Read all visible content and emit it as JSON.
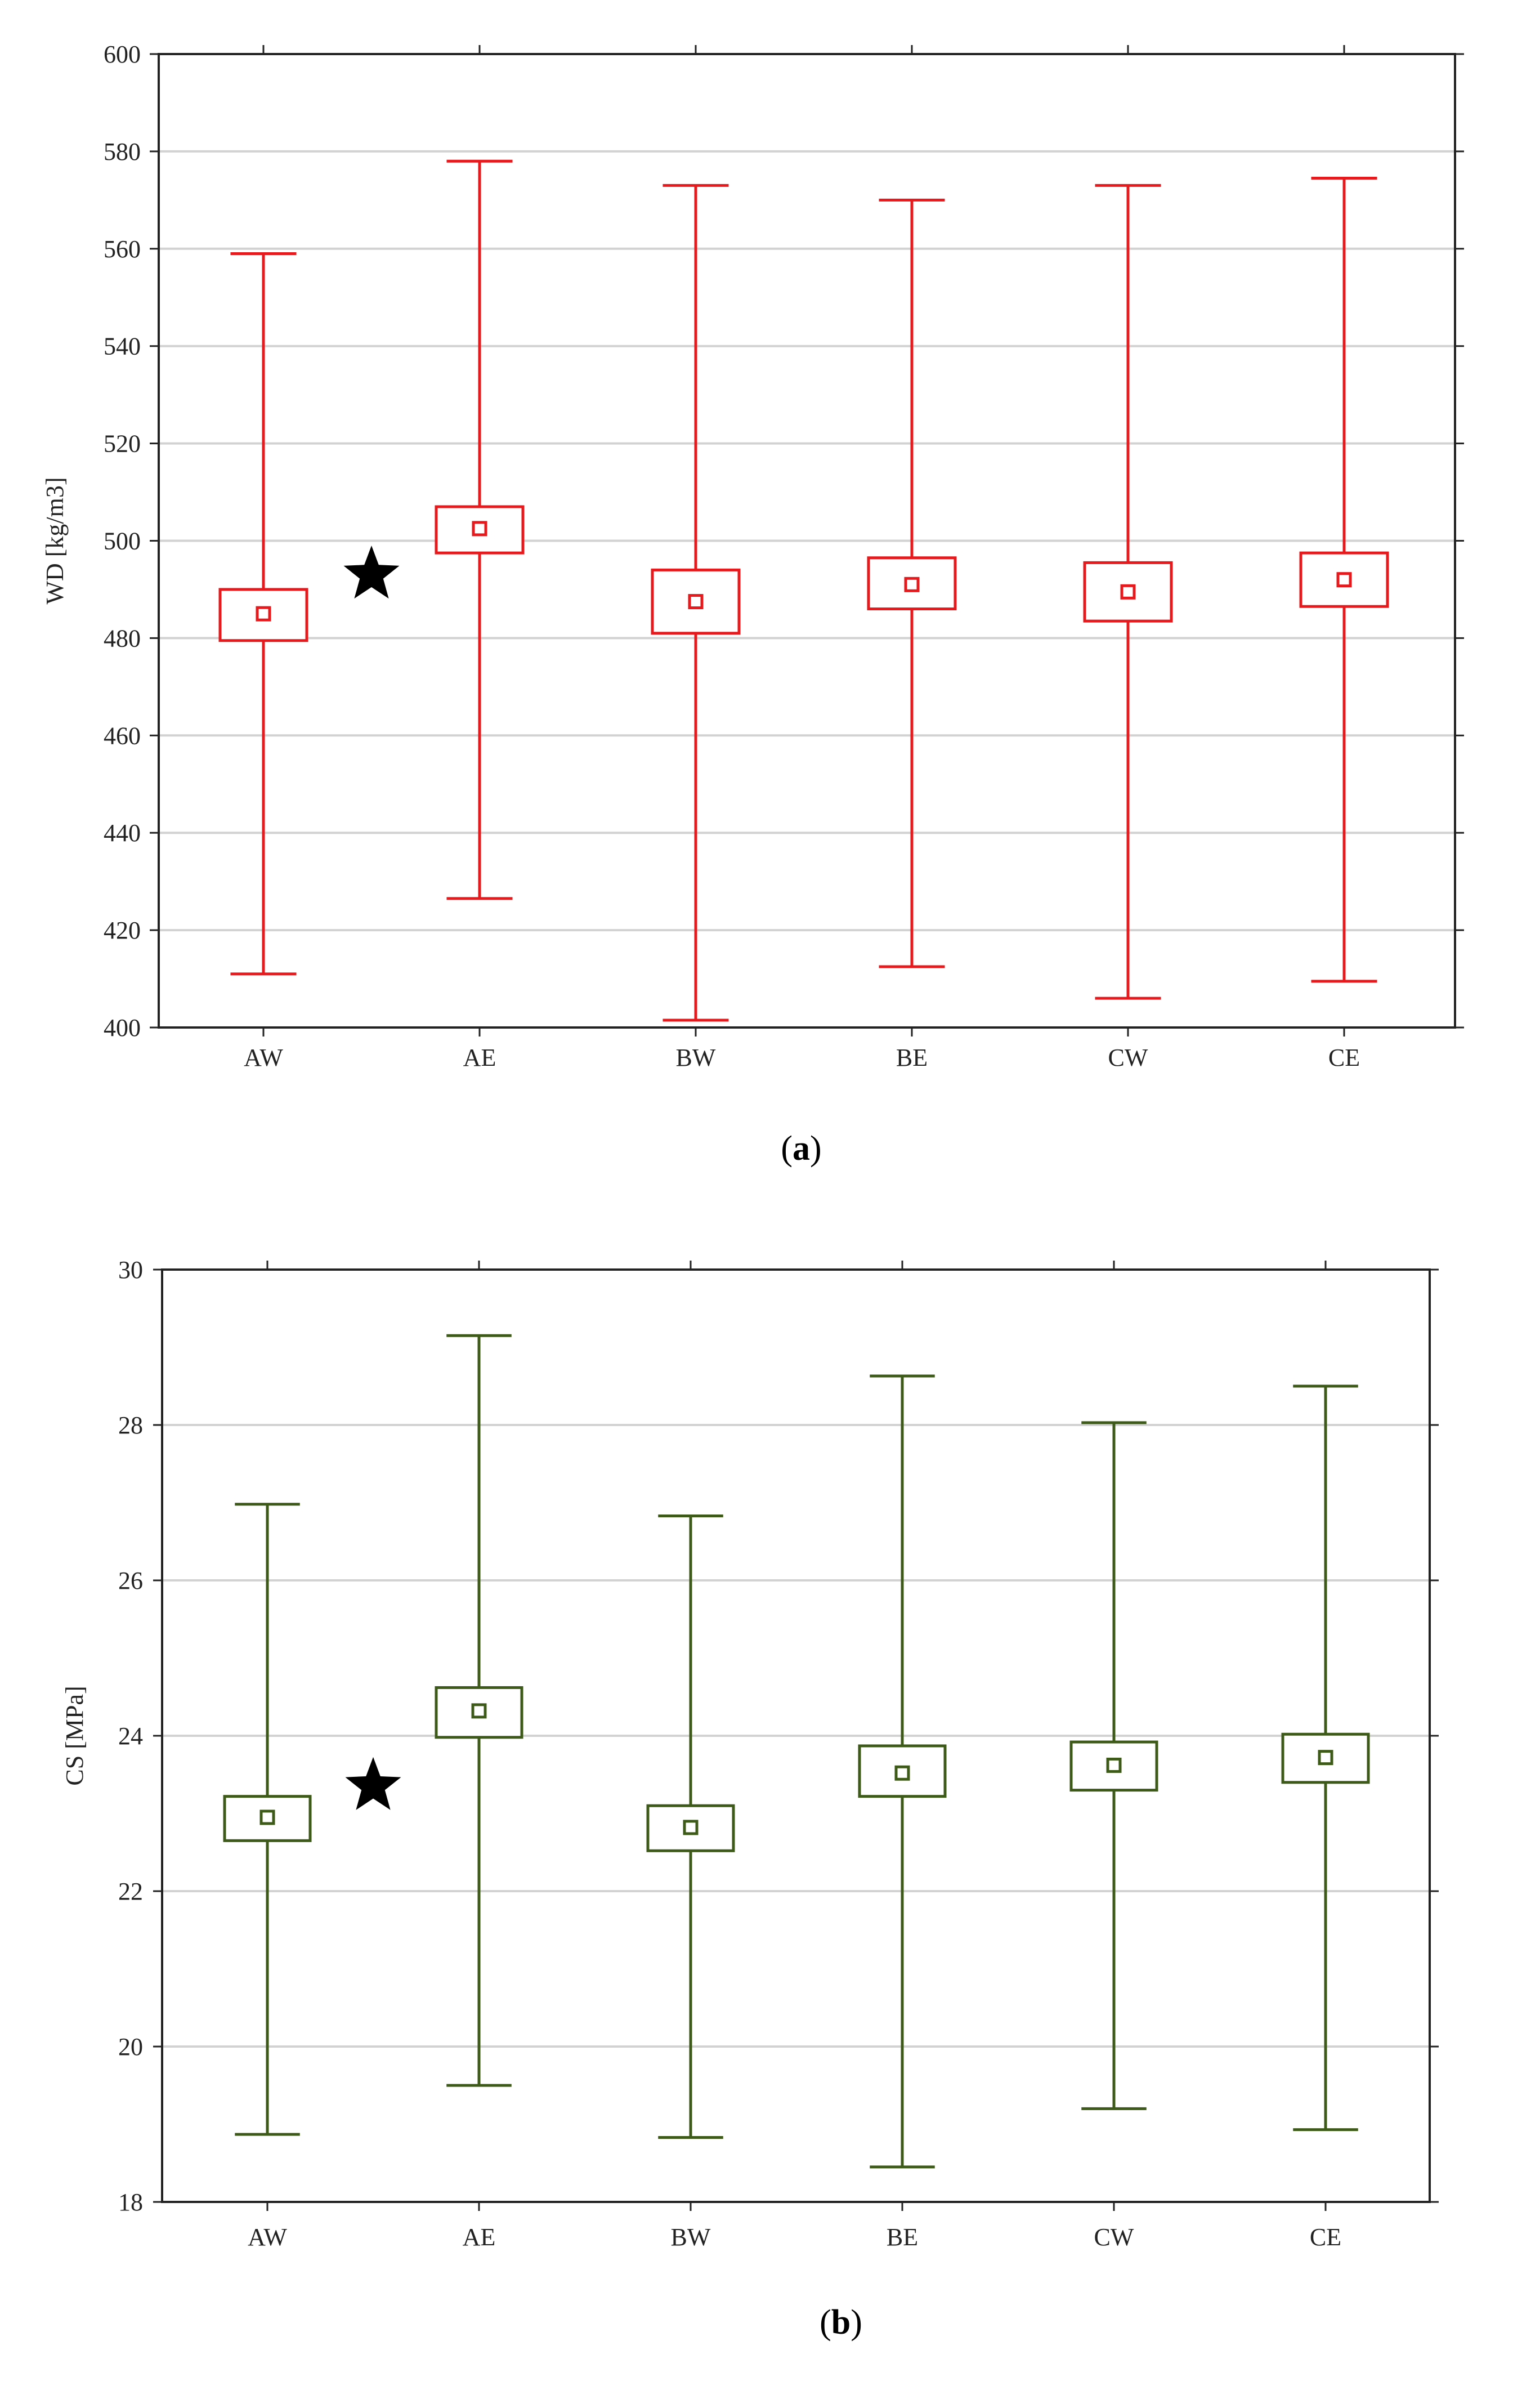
{
  "chart_data": [
    {
      "type": "boxplot",
      "caption_letter": "a",
      "ylabel": "WD [kg/m3]",
      "ylim": [
        400,
        600
      ],
      "yticks": [
        400,
        420,
        440,
        460,
        480,
        500,
        520,
        540,
        560,
        580,
        600
      ],
      "grid": true,
      "color": "#e8191c",
      "categories": [
        "AW",
        "AE",
        "BW",
        "BE",
        "CW",
        "CE"
      ],
      "series": [
        {
          "name": "AW",
          "mean": 485,
          "box_low": 479.5,
          "box_high": 490,
          "whisker_low": 411,
          "whisker_high": 559
        },
        {
          "name": "AE",
          "mean": 502.5,
          "box_low": 497.5,
          "box_high": 507,
          "whisker_low": 426.5,
          "whisker_high": 578
        },
        {
          "name": "BW",
          "mean": 487.5,
          "box_low": 481,
          "box_high": 494,
          "whisker_low": 401.5,
          "whisker_high": 573
        },
        {
          "name": "BE",
          "mean": 491,
          "box_low": 486,
          "box_high": 496.5,
          "whisker_low": 412.5,
          "whisker_high": 570
        },
        {
          "name": "CW",
          "mean": 489.5,
          "box_low": 483.5,
          "box_high": 495.5,
          "whisker_low": 406,
          "whisker_high": 573
        },
        {
          "name": "CE",
          "mean": 492,
          "box_low": 486.5,
          "box_high": 497.5,
          "whisker_low": 409.5,
          "whisker_high": 574.5
        }
      ],
      "annotation": {
        "symbol": "★",
        "between": [
          "AW",
          "AE"
        ],
        "y": 493
      }
    },
    {
      "type": "boxplot",
      "caption_letter": "b",
      "ylabel": "CS [MPa]",
      "ylim": [
        18,
        30
      ],
      "yticks": [
        18,
        20,
        22,
        24,
        26,
        28,
        30
      ],
      "grid": true,
      "color": "#3d5a19",
      "categories": [
        "AW",
        "AE",
        "BW",
        "BE",
        "CW",
        "CE"
      ],
      "series": [
        {
          "name": "AW",
          "mean": 22.95,
          "box_low": 22.65,
          "box_high": 23.22,
          "whisker_low": 18.87,
          "whisker_high": 26.98
        },
        {
          "name": "AE",
          "mean": 24.32,
          "box_low": 23.98,
          "box_high": 24.62,
          "whisker_low": 19.5,
          "whisker_high": 29.15
        },
        {
          "name": "BW",
          "mean": 22.82,
          "box_low": 22.52,
          "box_high": 23.1,
          "whisker_low": 18.83,
          "whisker_high": 26.83
        },
        {
          "name": "BE",
          "mean": 23.52,
          "box_low": 23.22,
          "box_high": 23.87,
          "whisker_low": 18.45,
          "whisker_high": 28.63
        },
        {
          "name": "CW",
          "mean": 23.62,
          "box_low": 23.3,
          "box_high": 23.92,
          "whisker_low": 19.2,
          "whisker_high": 28.03
        },
        {
          "name": "CE",
          "mean": 23.72,
          "box_low": 23.4,
          "box_high": 24.02,
          "whisker_low": 18.93,
          "whisker_high": 28.5
        }
      ],
      "annotation": {
        "symbol": "★",
        "between": [
          "AW",
          "AE"
        ],
        "y": 23.35
      }
    }
  ]
}
